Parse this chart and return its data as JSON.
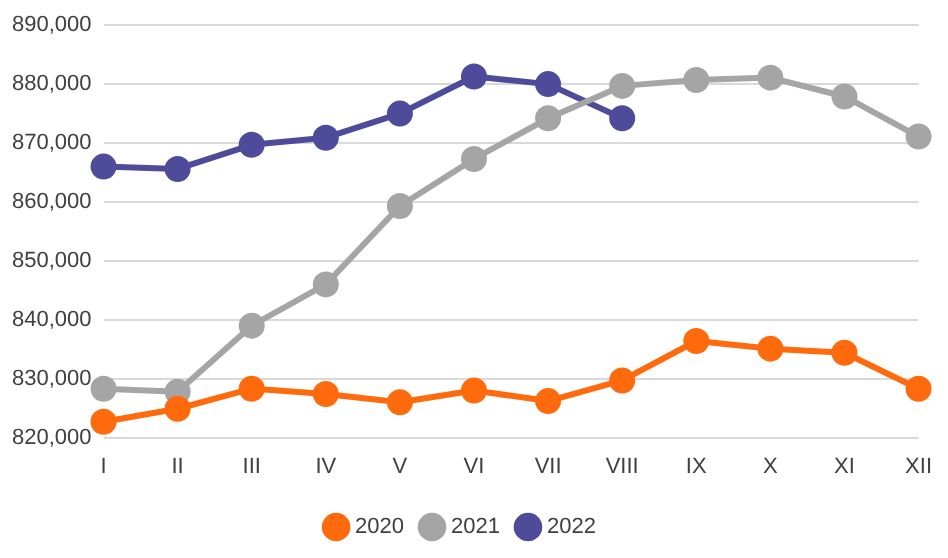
{
  "chart_data": {
    "type": "line",
    "categories": [
      "I",
      "II",
      "III",
      "IV",
      "V",
      "VI",
      "VII",
      "VIII",
      "IX",
      "X",
      "XI",
      "XII"
    ],
    "series": [
      {
        "name": "2020",
        "color": "#ff6a0d",
        "values": [
          822700,
          824900,
          828300,
          827400,
          826000,
          828000,
          826200,
          829700,
          836400,
          835100,
          834400,
          828300
        ]
      },
      {
        "name": "2021",
        "color": "#a5a5a5",
        "values": [
          828300,
          827800,
          839000,
          846000,
          859300,
          867300,
          874200,
          879700,
          880700,
          881100,
          877900,
          871100
        ]
      },
      {
        "name": "2022",
        "color": "#4e4b9b",
        "values": [
          866000,
          865600,
          869700,
          870900,
          875000,
          881300,
          880000,
          874200,
          null,
          null,
          null,
          null
        ]
      }
    ],
    "ylim": [
      820000,
      890000
    ],
    "yticks": [
      {
        "value": 820000,
        "label": "820,000"
      },
      {
        "value": 830000,
        "label": "830,000"
      },
      {
        "value": 840000,
        "label": "840,000"
      },
      {
        "value": 850000,
        "label": "850,000"
      },
      {
        "value": 860000,
        "label": "860,000"
      },
      {
        "value": 870000,
        "label": "870,000"
      },
      {
        "value": 880000,
        "label": "880,000"
      },
      {
        "value": 890000,
        "label": "890,000"
      }
    ],
    "grid": "y",
    "legend": "bottom",
    "marker": "circle",
    "line_style": "solid"
  }
}
